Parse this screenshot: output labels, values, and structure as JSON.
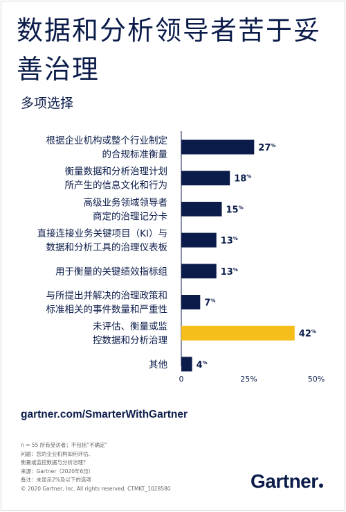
{
  "title": "数据和分析领导者苦于妥善治理",
  "subtitle": "多项选择",
  "chart_data": {
    "type": "bar",
    "orientation": "horizontal",
    "categories": [
      [
        "根据企业机构或整个行业制定",
        "的合规标准衡量"
      ],
      [
        "衡量数据和分析治理计划",
        "所产生的信息文化和行为"
      ],
      [
        "高级业务领域领导者",
        "商定的治理记分卡"
      ],
      [
        "直接连接业务关键项目（KI）与",
        "数据和分析工具的治理仪表板"
      ],
      [
        "用于衡量的关键绩效指标组"
      ],
      [
        "与所提出并解决的治理政策和",
        "标准相关的事件数量和严重性"
      ],
      [
        "未评估、衡量或监",
        "控数据和分析治理"
      ],
      [
        "其他"
      ]
    ],
    "values": [
      27,
      18,
      15,
      13,
      13,
      7,
      42,
      4
    ],
    "value_suffix": "%",
    "colors": [
      "#0b1c4a",
      "#0b1c4a",
      "#0b1c4a",
      "#0b1c4a",
      "#0b1c4a",
      "#0b1c4a",
      "#f5be1a",
      "#0b1c4a"
    ],
    "xlim": [
      0,
      50
    ],
    "xticks": [
      "0",
      "25%",
      "50%"
    ],
    "xtick_values": [
      0,
      25,
      50
    ],
    "grid": false
  },
  "url": "gartner.com/SmarterWithGartner",
  "footnotes": [
    "n = 55 所有受访者；不包括“不确定”",
    "问题：您的企业机构如何评估、\n衡量或监控数据与分析治理？",
    "来源：Gartner（2020年6月）",
    "备注：未显示2%及以下的选项",
    "© 2020 Gartner, Inc. All rights reserved. CTMKT_1028580"
  ],
  "logo_text": "Gartner"
}
